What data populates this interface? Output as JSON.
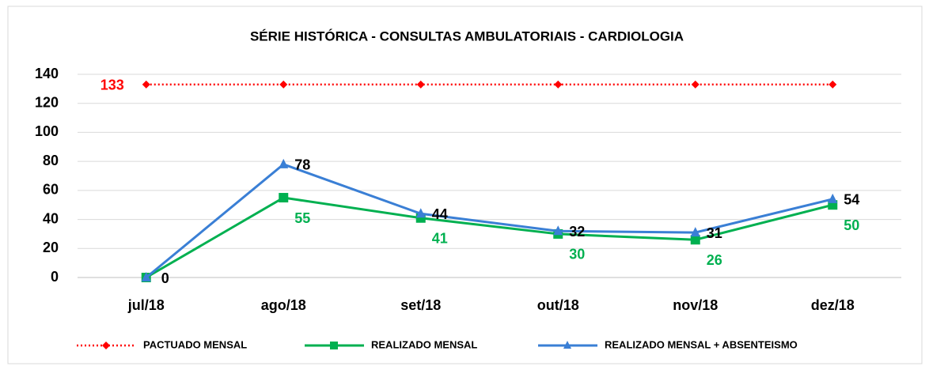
{
  "chart_data": {
    "type": "line",
    "title": "SÉRIE HISTÓRICA - CONSULTAS AMBULATORIAIS - CARDIOLOGIA",
    "categories": [
      "jul/18",
      "ago/18",
      "set/18",
      "out/18",
      "nov/18",
      "dez/18"
    ],
    "series": [
      {
        "name": "PACTUADO MENSAL",
        "color": "#ff0000",
        "marker": "diamond",
        "dash": "dotted",
        "label_color": "#ff0000",
        "values": [
          133,
          133,
          133,
          133,
          133,
          133
        ],
        "value_labels": [
          "133",
          null,
          null,
          null,
          null,
          null
        ]
      },
      {
        "name": "REALIZADO MENSAL",
        "color": "#00b050",
        "marker": "square",
        "label_color": "#00b050",
        "values": [
          0,
          55,
          41,
          30,
          26,
          50
        ],
        "value_labels": [
          null,
          "55",
          "41",
          "30",
          "26",
          "50"
        ]
      },
      {
        "name": "REALIZADO MENSAL + ABSENTEISMO",
        "color": "#3a7fd5",
        "marker": "triangle",
        "label_color": "#000000",
        "values": [
          0,
          78,
          44,
          32,
          31,
          54
        ],
        "value_labels": [
          "0",
          "78",
          "44",
          "32",
          "31",
          "54"
        ]
      }
    ],
    "ylim": [
      0,
      140
    ],
    "yticks": [
      0,
      20,
      40,
      60,
      80,
      100,
      120,
      140
    ],
    "grid": true,
    "legend": "bottom"
  }
}
